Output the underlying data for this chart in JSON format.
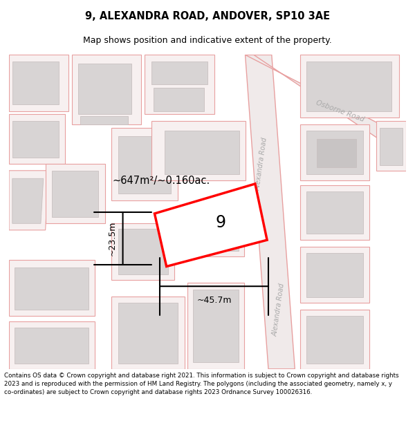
{
  "title_line1": "9, ALEXANDRA ROAD, ANDOVER, SP10 3AE",
  "title_line2": "Map shows position and indicative extent of the property.",
  "footer_text": "Contains OS data © Crown copyright and database right 2021. This information is subject to Crown copyright and database rights 2023 and is reproduced with the permission of HM Land Registry. The polygons (including the associated geometry, namely x, y co-ordinates) are subject to Crown copyright and database rights 2023 Ordnance Survey 100026316.",
  "map_bg": "#f7f0f0",
  "road_fill": "#f7f0f0",
  "road_edge": "#e8a0a0",
  "plot_fill": "#ffffff",
  "plot_edge": "#ff0000",
  "building_fill": "#d8d4d4",
  "building_edge": "#c8c0c0",
  "road_label_color": "#aaaaaa",
  "area_text": "~647m²/~0.160ac.",
  "width_text": "~45.7m",
  "height_text": "~23.5m",
  "plot_number": "9",
  "title_fontsize": 10.5,
  "subtitle_fontsize": 9,
  "footer_fontsize": 6.3
}
